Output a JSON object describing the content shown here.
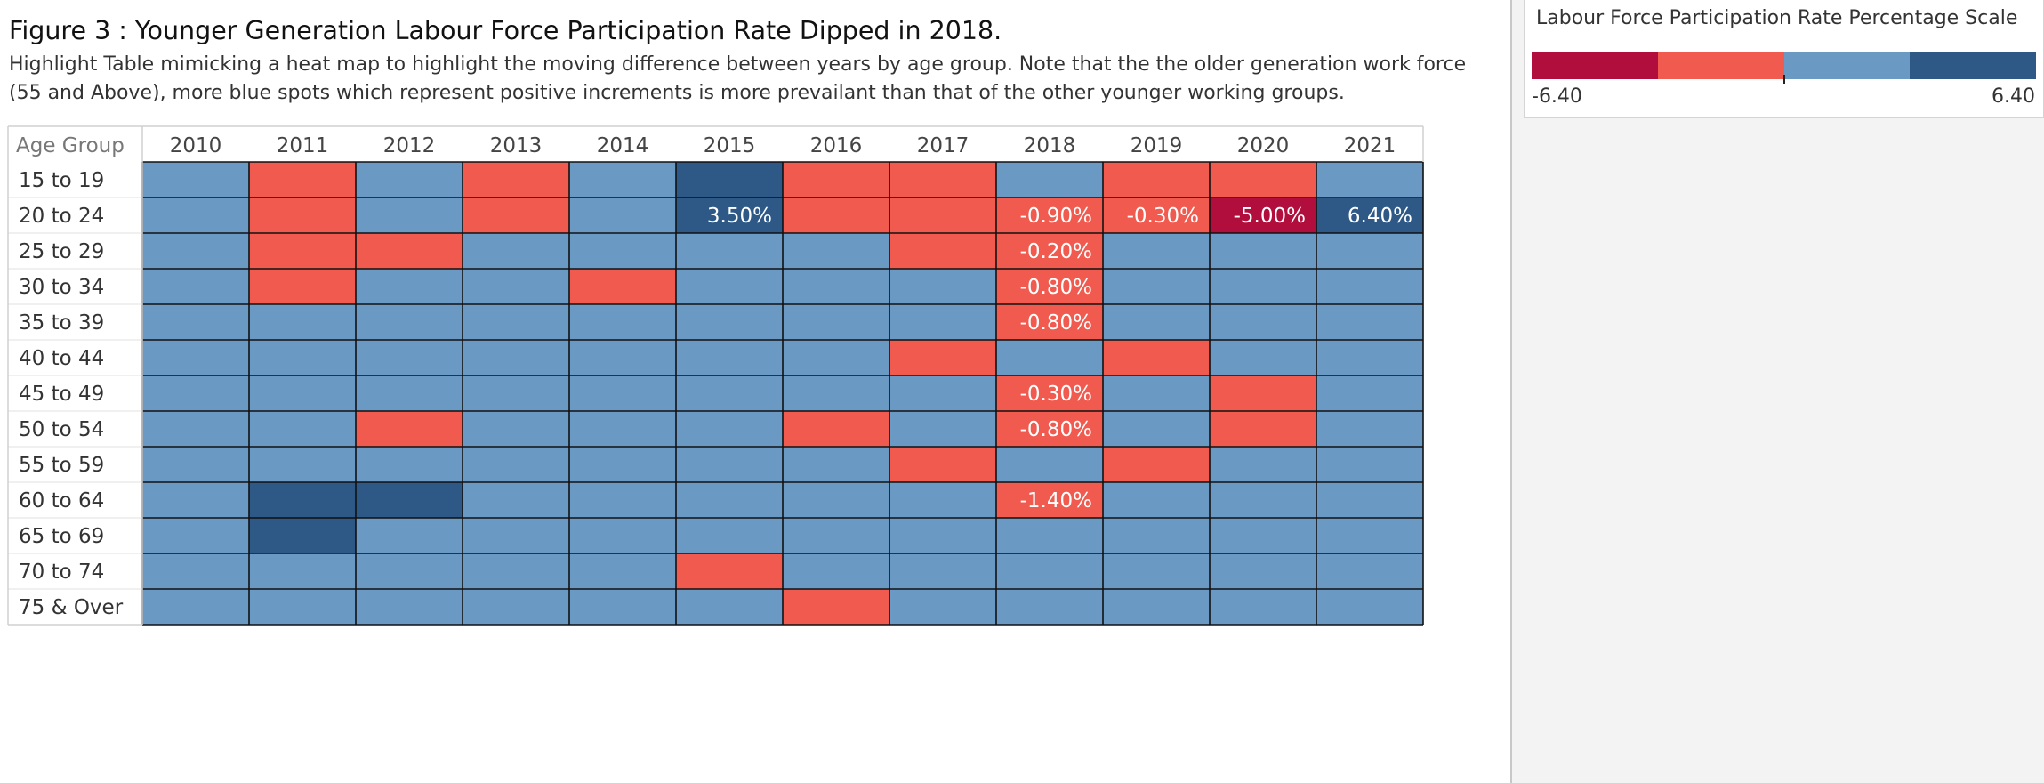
{
  "title": "Figure 3 : Younger Generation Labour Force Participation Rate Dipped in 2018.",
  "subtitle": "Highlight Table mimicking a heat map to highlight the moving difference between years by age group. Note that the the older generation work force (55 and Above), more blue spots which represent positive increments is more  prevailant than that of the other younger working groups.",
  "legend": {
    "title": "Labour Force Participation Rate Percentage Scale",
    "min_label": "-6.40",
    "max_label": "6.40",
    "colors": [
      "#b10e3d",
      "#f05a4f",
      "#6a9ac4",
      "#2e5987"
    ]
  },
  "chart_data": {
    "type": "heatmap",
    "row_header": "Age Group",
    "columns": [
      "2010",
      "2011",
      "2012",
      "2013",
      "2014",
      "2015",
      "2016",
      "2017",
      "2018",
      "2019",
      "2020",
      "2021"
    ],
    "rows": [
      "15 to 19",
      "20 to 24",
      "25 to 29",
      "30 to 34",
      "35 to 39",
      "40 to 44",
      "45 to 49",
      "50 to 54",
      "55 to 59",
      "60 to 64",
      "65 to 69",
      "70 to 74",
      "75 & Over"
    ],
    "color_scale": {
      "domain": [
        -6.4,
        6.4
      ],
      "colors": {
        "strong_negative": "#b10e3d",
        "negative": "#f05a4f",
        "positive": "#6a9ac4",
        "strong_positive": "#2e5987"
      }
    },
    "cells": [
      [
        "positive",
        "negative",
        "positive",
        "negative",
        "positive",
        "strong_positive",
        "negative",
        "negative",
        "positive",
        "negative",
        "negative",
        "positive"
      ],
      [
        "positive",
        "negative",
        "positive",
        "negative",
        "positive",
        "strong_positive",
        "negative",
        "negative",
        "negative",
        "negative",
        "strong_negative",
        "strong_positive"
      ],
      [
        "positive",
        "negative",
        "negative",
        "positive",
        "positive",
        "positive",
        "positive",
        "negative",
        "negative",
        "positive",
        "positive",
        "positive"
      ],
      [
        "positive",
        "negative",
        "positive",
        "positive",
        "negative",
        "positive",
        "positive",
        "positive",
        "negative",
        "positive",
        "positive",
        "positive"
      ],
      [
        "positive",
        "positive",
        "positive",
        "positive",
        "positive",
        "positive",
        "positive",
        "positive",
        "negative",
        "positive",
        "positive",
        "positive"
      ],
      [
        "positive",
        "positive",
        "positive",
        "positive",
        "positive",
        "positive",
        "positive",
        "negative",
        "positive",
        "negative",
        "positive",
        "positive"
      ],
      [
        "positive",
        "positive",
        "positive",
        "positive",
        "positive",
        "positive",
        "positive",
        "positive",
        "negative",
        "positive",
        "negative",
        "positive"
      ],
      [
        "positive",
        "positive",
        "negative",
        "positive",
        "positive",
        "positive",
        "negative",
        "positive",
        "negative",
        "positive",
        "negative",
        "positive"
      ],
      [
        "positive",
        "positive",
        "positive",
        "positive",
        "positive",
        "positive",
        "positive",
        "negative",
        "positive",
        "negative",
        "positive",
        "positive"
      ],
      [
        "positive",
        "strong_positive",
        "strong_positive",
        "positive",
        "positive",
        "positive",
        "positive",
        "positive",
        "negative",
        "positive",
        "positive",
        "positive"
      ],
      [
        "positive",
        "strong_positive",
        "positive",
        "positive",
        "positive",
        "positive",
        "positive",
        "positive",
        "positive",
        "positive",
        "positive",
        "positive"
      ],
      [
        "positive",
        "positive",
        "positive",
        "positive",
        "positive",
        "negative",
        "positive",
        "positive",
        "positive",
        "positive",
        "positive",
        "positive"
      ],
      [
        "positive",
        "positive",
        "positive",
        "positive",
        "positive",
        "positive",
        "negative",
        "positive",
        "positive",
        "positive",
        "positive",
        "positive"
      ]
    ],
    "labels": [
      {
        "row": "20 to 24",
        "column": "2015",
        "value": 3.5,
        "text": "3.50%"
      },
      {
        "row": "20 to 24",
        "column": "2018",
        "value": -0.9,
        "text": "-0.90%"
      },
      {
        "row": "20 to 24",
        "column": "2019",
        "value": -0.3,
        "text": "-0.30%"
      },
      {
        "row": "20 to 24",
        "column": "2020",
        "value": -5.0,
        "text": "-5.00%"
      },
      {
        "row": "20 to 24",
        "column": "2021",
        "value": 6.4,
        "text": "6.40%"
      },
      {
        "row": "25 to 29",
        "column": "2018",
        "value": -0.2,
        "text": "-0.20%"
      },
      {
        "row": "30 to 34",
        "column": "2018",
        "value": -0.8,
        "text": "-0.80%"
      },
      {
        "row": "35 to 39",
        "column": "2018",
        "value": -0.8,
        "text": "-0.80%"
      },
      {
        "row": "45 to 49",
        "column": "2018",
        "value": -0.3,
        "text": "-0.30%"
      },
      {
        "row": "50 to 54",
        "column": "2018",
        "value": -0.8,
        "text": "-0.80%"
      },
      {
        "row": "60 to 64",
        "column": "2018",
        "value": -1.4,
        "text": "-1.40%"
      }
    ]
  }
}
